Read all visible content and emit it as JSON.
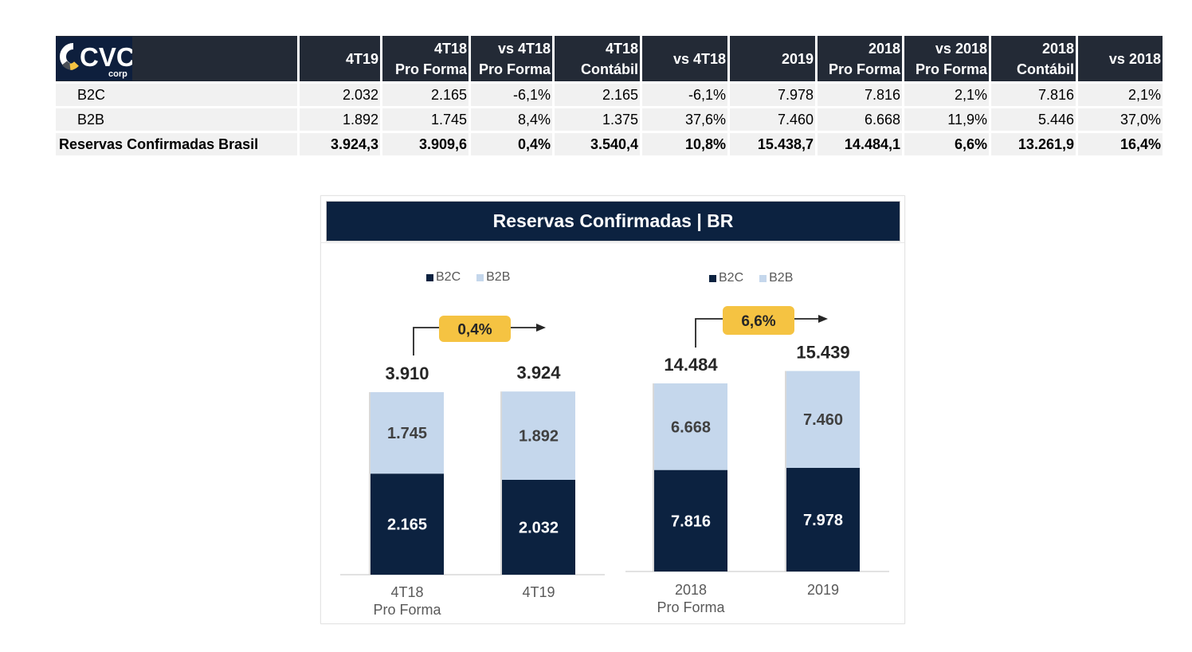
{
  "table": {
    "logo": {
      "text": "CVC",
      "subtext": "corp"
    },
    "columns": [
      {
        "line1": "4T19",
        "line2": ""
      },
      {
        "line1": "4T18",
        "line2": "Pro Forma"
      },
      {
        "line1": "vs 4T18",
        "line2": "Pro Forma"
      },
      {
        "line1": "4T18",
        "line2": "Contábil"
      },
      {
        "line1": "vs 4T18",
        "line2": ""
      },
      {
        "line1": "2019",
        "line2": ""
      },
      {
        "line1": "2018",
        "line2": "Pro Forma"
      },
      {
        "line1": "vs 2018",
        "line2": "Pro Forma"
      },
      {
        "line1": "2018",
        "line2": "Contábil"
      },
      {
        "line1": "vs 2018",
        "line2": ""
      }
    ],
    "rows": [
      {
        "label": "B2C",
        "values": [
          "2.032",
          "2.165",
          "-6,1%",
          "2.165",
          "-6,1%",
          "7.978",
          "7.816",
          "2,1%",
          "7.816",
          "2,1%"
        ]
      },
      {
        "label": "B2B",
        "values": [
          "1.892",
          "1.745",
          "8,4%",
          "1.375",
          "37,6%",
          "7.460",
          "6.668",
          "11,9%",
          "5.446",
          "37,0%"
        ]
      },
      {
        "label": "Reservas Confirmadas Brasil",
        "values": [
          "3.924,3",
          "3.909,6",
          "0,4%",
          "3.540,4",
          "10,8%",
          "15.438,7",
          "14.484,1",
          "6,6%",
          "13.261,9",
          "16,4%"
        ]
      }
    ]
  },
  "colors": {
    "b2c": "#0c2240",
    "b2b": "#c5d7ec",
    "badge": "#f5c342",
    "header": "#232a36"
  },
  "chart_data": [
    {
      "type": "bar",
      "stacked": true,
      "title": "Reservas Confirmadas | BR",
      "categories": [
        [
          "4T18",
          "Pro Forma"
        ],
        [
          "4T19"
        ]
      ],
      "series": [
        {
          "name": "B2C",
          "values": [
            2165,
            2032
          ],
          "labels": [
            "2.165",
            "2.032"
          ]
        },
        {
          "name": "B2B",
          "values": [
            1745,
            1892
          ],
          "labels": [
            "1.745",
            "1.892"
          ]
        }
      ],
      "totals": [
        "3.910",
        "3.924"
      ],
      "growth_badge": "0,4%",
      "legend": [
        "B2C",
        "B2B"
      ],
      "legend_position": "top",
      "xlabel": "",
      "ylabel": "",
      "ylim": [
        0,
        4500
      ],
      "grid": false
    },
    {
      "type": "bar",
      "stacked": true,
      "categories": [
        [
          "2018",
          "Pro Forma"
        ],
        [
          "2019"
        ]
      ],
      "series": [
        {
          "name": "B2C",
          "values": [
            7816,
            7978
          ],
          "labels": [
            "7.816",
            "7.978"
          ]
        },
        {
          "name": "B2B",
          "values": [
            6668,
            7460
          ],
          "labels": [
            "6.668",
            "7.460"
          ]
        }
      ],
      "totals": [
        "14.484",
        "15.439"
      ],
      "growth_badge": "6,6%",
      "legend": [
        "B2C",
        "B2B"
      ],
      "legend_position": "top",
      "xlabel": "",
      "ylabel": "",
      "ylim": [
        0,
        15439
      ],
      "grid": false
    }
  ]
}
